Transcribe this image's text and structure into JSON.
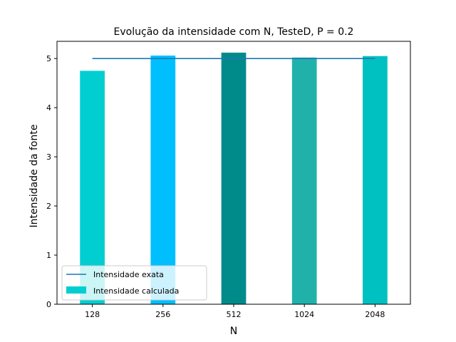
{
  "chart_data": {
    "type": "bar",
    "title": "Evolução da intensidade com N, TesteD, P = 0.2",
    "xlabel": "N",
    "ylabel": "Intensidade da fonte",
    "categories": [
      "128",
      "256",
      "512",
      "1024",
      "2048"
    ],
    "ylim": [
      0,
      5.35
    ],
    "yticks": [
      0,
      1,
      2,
      3,
      4,
      5
    ],
    "grid": false,
    "legend_position": "lower-left",
    "series": [
      {
        "name": "Intensidade exata",
        "kind": "line",
        "values": [
          5.0,
          5.0,
          5.0,
          5.0,
          5.0
        ],
        "color": "#1f77b4"
      },
      {
        "name": "Intensidade calculada",
        "kind": "bar",
        "values": [
          4.75,
          5.06,
          5.12,
          5.02,
          5.05
        ],
        "colors": [
          "#00ced1",
          "#00bfff",
          "#008b8b",
          "#20b2aa",
          "#00c1c1"
        ]
      }
    ]
  }
}
